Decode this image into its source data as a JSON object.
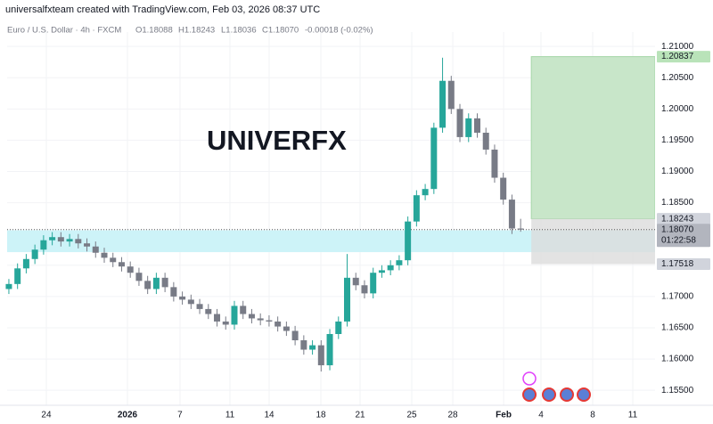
{
  "chart_data": {
    "type": "candlestick",
    "credit": "universalfxteam created with TradingView.com, Feb 03, 2026 08:37 UTC",
    "title": "Euro / U.S. Dollar · 4h · FXCM",
    "ohlc_header": [
      "O1.18088",
      "H1.18243",
      "L1.18036",
      "C1.18070"
    ],
    "change": "-0.00018 (-0.02%)",
    "watermark": "UNIVERFX",
    "up_color": "#26a69a",
    "down_color": "#787b86",
    "open": [
      1.1712,
      1.172,
      1.1745,
      1.176,
      1.1775,
      1.179,
      1.1795,
      1.1788,
      1.1792,
      1.1785,
      1.178,
      1.177,
      1.1762,
      1.1755,
      1.1748,
      1.1738,
      1.1725,
      1.1712,
      1.173,
      1.1715,
      1.17,
      1.1695,
      1.1688,
      1.168,
      1.1672,
      1.166,
      1.1655,
      1.1685,
      1.1672,
      1.1665,
      1.1662,
      1.166,
      1.1652,
      1.1645,
      1.163,
      1.1615,
      1.1622,
      1.159,
      1.164,
      1.166,
      1.173,
      1.1718,
      1.1705,
      1.1738,
      1.1742,
      1.175,
      1.1758,
      1.182,
      1.1862,
      1.1872,
      1.197,
      1.2045,
      1.2,
      1.1955,
      1.1985,
      1.1962,
      1.1935,
      1.189,
      1.1855,
      1.18088
    ],
    "high": [
      1.1728,
      1.1753,
      1.1768,
      1.1783,
      1.1798,
      1.1803,
      1.1803,
      1.18,
      1.18,
      1.1793,
      1.1788,
      1.1778,
      1.177,
      1.1763,
      1.1756,
      1.1746,
      1.1733,
      1.1738,
      1.1738,
      1.1723,
      1.1708,
      1.1703,
      1.1696,
      1.1688,
      1.168,
      1.1668,
      1.1693,
      1.1693,
      1.168,
      1.1673,
      1.167,
      1.1668,
      1.166,
      1.1653,
      1.1638,
      1.163,
      1.163,
      1.1648,
      1.1668,
      1.1768,
      1.1738,
      1.1726,
      1.1746,
      1.175,
      1.1758,
      1.1766,
      1.1828,
      1.187,
      1.188,
      1.1978,
      1.2082,
      1.2053,
      1.2008,
      1.1993,
      1.1993,
      1.197,
      1.1943,
      1.1898,
      1.1863,
      1.18243
    ],
    "low": [
      1.1704,
      1.1712,
      1.1737,
      1.1752,
      1.1767,
      1.1782,
      1.178,
      1.178,
      1.1777,
      1.1772,
      1.1762,
      1.1754,
      1.1747,
      1.174,
      1.173,
      1.1717,
      1.1704,
      1.1704,
      1.1707,
      1.1692,
      1.1687,
      1.168,
      1.1672,
      1.1664,
      1.1652,
      1.1647,
      1.1647,
      1.1664,
      1.1657,
      1.1654,
      1.1652,
      1.1644,
      1.1637,
      1.1622,
      1.1607,
      1.1607,
      1.158,
      1.1582,
      1.1632,
      1.1652,
      1.171,
      1.1697,
      1.1697,
      1.173,
      1.1734,
      1.1742,
      1.175,
      1.1812,
      1.1854,
      1.1864,
      1.1962,
      1.1992,
      1.1947,
      1.1947,
      1.1954,
      1.1927,
      1.1882,
      1.1847,
      1.18,
      1.18036
    ],
    "close": [
      1.172,
      1.1745,
      1.176,
      1.1775,
      1.179,
      1.1795,
      1.1788,
      1.1792,
      1.1785,
      1.178,
      1.177,
      1.1762,
      1.1755,
      1.1748,
      1.1738,
      1.1725,
      1.1712,
      1.173,
      1.1715,
      1.17,
      1.1695,
      1.1688,
      1.168,
      1.1672,
      1.166,
      1.1655,
      1.1685,
      1.1672,
      1.1665,
      1.1662,
      1.166,
      1.1652,
      1.1645,
      1.163,
      1.1615,
      1.1622,
      1.159,
      1.164,
      1.166,
      1.173,
      1.1718,
      1.1705,
      1.1738,
      1.1742,
      1.175,
      1.1758,
      1.182,
      1.1862,
      1.1872,
      1.197,
      1.2045,
      1.2,
      1.1955,
      1.1985,
      1.1962,
      1.1935,
      1.189,
      1.1855,
      1.18088,
      1.1807
    ],
    "xlim": [
      -0.2,
      74.5
    ],
    "xticks": [
      {
        "value": 4.32,
        "label": "24"
      },
      {
        "value": 13.67,
        "label": "2026"
      },
      {
        "value": 19.73,
        "label": "7"
      },
      {
        "value": 25.49,
        "label": "11"
      },
      {
        "value": 30.01,
        "label": "14"
      },
      {
        "value": 35.97,
        "label": "18"
      },
      {
        "value": 40.49,
        "label": "21"
      },
      {
        "value": 46.45,
        "label": "25"
      },
      {
        "value": 51.18,
        "label": "28"
      },
      {
        "value": 57.04,
        "label": "Feb"
      },
      {
        "value": 61.35,
        "label": "4"
      },
      {
        "value": 67.31,
        "label": "8"
      },
      {
        "value": 71.93,
        "label": "11"
      }
    ],
    "ylim": [
      1.1526,
      1.2123
    ],
    "yticks": [
      {
        "value": 1.155,
        "label": "1.15500"
      },
      {
        "value": 1.16,
        "label": "1.16000"
      },
      {
        "value": 1.165,
        "label": "1.16500"
      },
      {
        "value": 1.17,
        "label": "1.17000"
      },
      {
        "value": 1.175,
        "label": "1.17500"
      },
      {
        "value": 1.18,
        "label": "1.18000"
      },
      {
        "value": 1.185,
        "label": "1.18500"
      },
      {
        "value": 1.19,
        "label": "1.19000"
      },
      {
        "value": 1.195,
        "label": "1.19500"
      },
      {
        "value": 1.2,
        "label": "1.20000"
      },
      {
        "value": 1.205,
        "label": "1.20500"
      },
      {
        "value": 1.21,
        "label": "1.21000"
      }
    ],
    "grid": true,
    "zone": {
      "low": 1.1771,
      "high": 1.1806,
      "color": "#cdf3f8"
    },
    "position": {
      "target": 1.20837,
      "entry": 1.18243,
      "stop": 1.17518,
      "profit_color": "#c8e6c9",
      "loss_color": "#dcdcdc"
    },
    "last_price": 1.1807,
    "price_tags": [
      {
        "value": 1.20837,
        "label": "1.20837",
        "color": "#b9e3b9"
      },
      {
        "value": 1.18243,
        "label": "1.18243",
        "color": "#d1d4dc"
      },
      {
        "value": 1.1807,
        "label": "1.18070",
        "color": "#b2b5be"
      },
      {
        "value": 1.17518,
        "label": "1.17518",
        "color": "#d1d4dc"
      }
    ],
    "countdown": "01:22:58"
  }
}
